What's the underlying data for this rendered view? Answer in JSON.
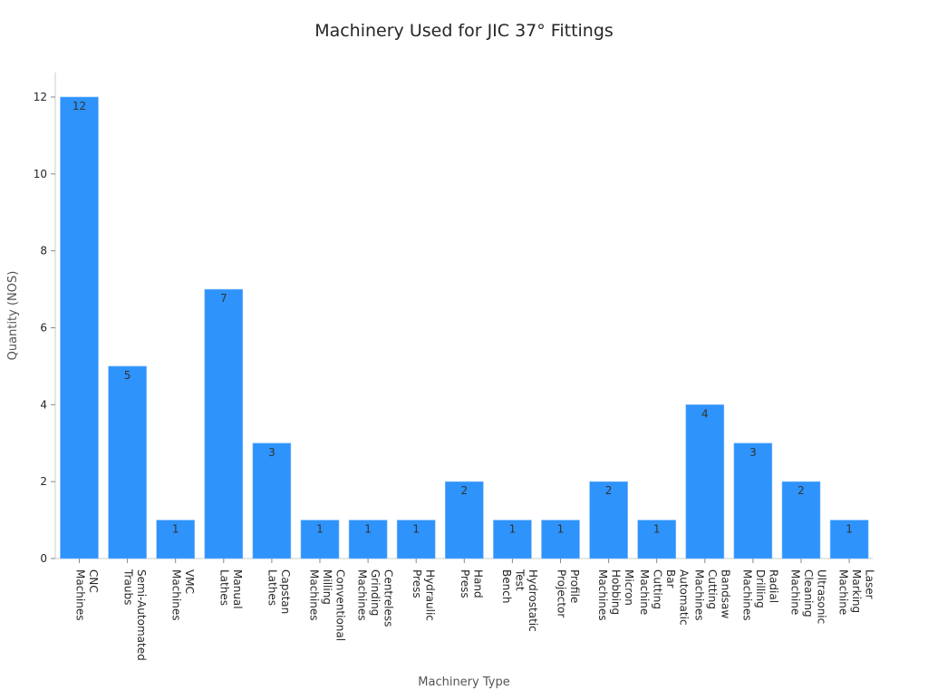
{
  "chart_data": {
    "type": "bar",
    "title": "Machinery Used for JIC 37° Fittings",
    "xlabel": "Machinery Type",
    "ylabel": "Quantity (NOS)",
    "ylim": [
      0,
      12.6
    ],
    "yticks": [
      0,
      2,
      4,
      6,
      8,
      10,
      12
    ],
    "grid": false,
    "bar_color": "#2e93fa",
    "categories": [
      [
        "CNC",
        "Machines"
      ],
      [
        "Semi-Automated",
        "Traubs"
      ],
      [
        "VMC",
        "Machines"
      ],
      [
        "Manual",
        "Lathes"
      ],
      [
        "Capstan",
        "Lathes"
      ],
      [
        "Conventional",
        "Milling",
        "Machines"
      ],
      [
        "Centreless",
        "Grinding",
        "Machines"
      ],
      [
        "Hydraulic",
        "Press"
      ],
      [
        "Hand",
        "Press"
      ],
      [
        "Hydrostatic",
        "Test",
        "Bench"
      ],
      [
        "Profile",
        "Projector"
      ],
      [
        "Micron",
        "Hobbing",
        "Machines"
      ],
      [
        "Automatic",
        "Bar",
        "Cutting",
        "Machine"
      ],
      [
        "Bandsaw",
        "Cutting",
        "Machines"
      ],
      [
        "Radial",
        "Drilling",
        "Machines"
      ],
      [
        "Ultrasonic",
        "Cleaning",
        "Machine"
      ],
      [
        "Laser",
        "Marking",
        "Machine"
      ]
    ],
    "values": [
      12,
      5,
      1,
      7,
      3,
      1,
      1,
      1,
      2,
      1,
      1,
      2,
      1,
      4,
      3,
      2,
      1
    ]
  }
}
